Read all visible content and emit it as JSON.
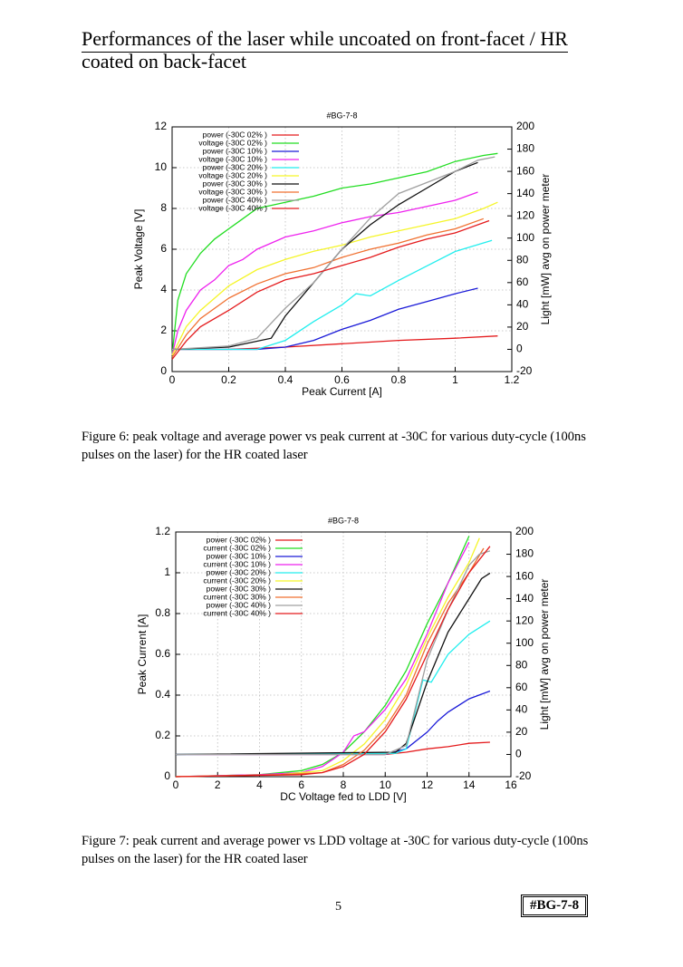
{
  "header": {
    "title": "Performances of the laser while uncoated on front-facet / HR coated on back-facet"
  },
  "chart_data": [
    {
      "type": "line",
      "title": "#BG-7-8",
      "xlabel": "Peak Current [A]",
      "ylabel": "Peak Voltage [V]",
      "y2label": "Light [mW] avg on power meter",
      "xlim": [
        0,
        1.2
      ],
      "xticks": [
        0,
        0.2,
        0.4,
        0.6,
        0.8,
        1,
        1.2
      ],
      "ylim": [
        0,
        12
      ],
      "yticks": [
        0,
        2,
        4,
        6,
        8,
        10,
        12
      ],
      "y2lim": [
        -20,
        200
      ],
      "y2ticks": [
        -20,
        0,
        20,
        40,
        60,
        80,
        100,
        120,
        140,
        160,
        180,
        200
      ],
      "grid": true,
      "legend": "upper left",
      "series": [
        {
          "name": "power (-30C 02% )",
          "color": "#e41a1c",
          "axis": "y2",
          "x": [
            0,
            0.2,
            0.4,
            0.6,
            0.8,
            1.0,
            1.15
          ],
          "values": [
            0,
            0,
            2,
            5,
            8,
            10,
            12
          ]
        },
        {
          "name": "voltage (-30C 02% )",
          "color": "#22dd22",
          "x": [
            0,
            0.02,
            0.05,
            0.1,
            0.15,
            0.2,
            0.25,
            0.3,
            0.4,
            0.5,
            0.6,
            0.7,
            0.8,
            0.9,
            1.0,
            1.1,
            1.15
          ],
          "values": [
            0.8,
            3.5,
            4.8,
            5.8,
            6.5,
            7.0,
            7.5,
            8.0,
            8.3,
            8.6,
            9.0,
            9.2,
            9.5,
            9.8,
            10.3,
            10.6,
            10.7
          ]
        },
        {
          "name": "power (-30C 10% )",
          "color": "#1a1ad8",
          "axis": "y2",
          "x": [
            0,
            0.3,
            0.4,
            0.5,
            0.6,
            0.7,
            0.8,
            0.9,
            1.0,
            1.08
          ],
          "values": [
            0,
            0,
            2,
            8,
            18,
            26,
            36,
            43,
            50,
            55
          ]
        },
        {
          "name": "voltage (-30C 10% )",
          "color": "#ee22ee",
          "x": [
            0,
            0.02,
            0.05,
            0.1,
            0.15,
            0.2,
            0.25,
            0.3,
            0.4,
            0.5,
            0.6,
            0.7,
            0.8,
            0.9,
            1.0,
            1.08
          ],
          "values": [
            0.8,
            2.0,
            3.0,
            4.0,
            4.5,
            5.2,
            5.5,
            6.0,
            6.6,
            6.9,
            7.3,
            7.6,
            7.8,
            8.1,
            8.4,
            8.8
          ]
        },
        {
          "name": "power (-30C 20% )",
          "color": "#22eeee",
          "axis": "y2",
          "x": [
            0,
            0.3,
            0.4,
            0.5,
            0.6,
            0.65,
            0.7,
            0.8,
            0.9,
            1.0,
            1.13
          ],
          "values": [
            0,
            0,
            8,
            25,
            40,
            50,
            48,
            62,
            75,
            88,
            98
          ]
        },
        {
          "name": "voltage (-30C 20% )",
          "color": "#f5f528",
          "x": [
            0,
            0.05,
            0.1,
            0.2,
            0.3,
            0.4,
            0.5,
            0.6,
            0.7,
            0.8,
            0.9,
            1.0,
            1.1,
            1.15
          ],
          "values": [
            0.8,
            2.2,
            3.0,
            4.2,
            5.0,
            5.5,
            5.9,
            6.2,
            6.6,
            6.9,
            7.2,
            7.5,
            8.0,
            8.3
          ]
        },
        {
          "name": "power (-30C 30% )",
          "color": "#111111",
          "axis": "y2",
          "x": [
            0,
            0.2,
            0.35,
            0.4,
            0.5,
            0.6,
            0.7,
            0.8,
            0.9,
            1.0,
            1.08
          ],
          "values": [
            0,
            2,
            10,
            30,
            60,
            90,
            112,
            130,
            145,
            160,
            168
          ]
        },
        {
          "name": "voltage (-30C 30% )",
          "color": "#f07030",
          "x": [
            0,
            0.05,
            0.1,
            0.2,
            0.3,
            0.4,
            0.5,
            0.6,
            0.7,
            0.8,
            0.9,
            1.0,
            1.1
          ],
          "values": [
            0.7,
            1.8,
            2.6,
            3.6,
            4.3,
            4.8,
            5.1,
            5.6,
            6.0,
            6.3,
            6.7,
            7.0,
            7.5
          ]
        },
        {
          "name": "power (-30C 40% )",
          "color": "#a0a0a0",
          "axis": "y2",
          "x": [
            0,
            0.2,
            0.3,
            0.4,
            0.5,
            0.6,
            0.7,
            0.8,
            0.9,
            1.0,
            1.08,
            1.14
          ],
          "values": [
            0,
            3,
            10,
            37,
            60,
            90,
            118,
            140,
            150,
            160,
            170,
            173
          ]
        },
        {
          "name": "voltage (-30C 40% )",
          "color": "#e41a1c",
          "x": [
            0,
            0.05,
            0.1,
            0.2,
            0.3,
            0.4,
            0.5,
            0.6,
            0.7,
            0.8,
            0.9,
            1.0,
            1.12
          ],
          "values": [
            0.6,
            1.5,
            2.2,
            3.0,
            3.9,
            4.5,
            4.8,
            5.2,
            5.6,
            6.1,
            6.5,
            6.8,
            7.4
          ]
        }
      ]
    },
    {
      "type": "line",
      "title": "#BG-7-8",
      "xlabel": "DC Voltage fed to LDD [V]",
      "ylabel": "Peak Current [A]",
      "y2label": "Light [mW] avg on power meter",
      "xlim": [
        0,
        16
      ],
      "xticks": [
        0,
        2,
        4,
        6,
        8,
        10,
        12,
        14,
        16
      ],
      "ylim": [
        0,
        1.2
      ],
      "yticks": [
        0,
        0.2,
        0.4,
        0.6,
        0.8,
        1,
        1.2
      ],
      "y2lim": [
        -20,
        200
      ],
      "y2ticks": [
        -20,
        0,
        20,
        40,
        60,
        80,
        100,
        120,
        140,
        160,
        180,
        200
      ],
      "grid": true,
      "legend": "upper left",
      "series": [
        {
          "name": "power (-30C 02% )",
          "color": "#e41a1c",
          "axis": "y2",
          "x": [
            0,
            10,
            11,
            12,
            13,
            14,
            15
          ],
          "values": [
            0,
            0,
            2,
            5,
            7,
            10,
            11
          ]
        },
        {
          "name": "current (-30C 02% )",
          "color": "#22dd22",
          "x": [
            0,
            4,
            6,
            7,
            8,
            9,
            10,
            11,
            12,
            13,
            14
          ],
          "values": [
            0,
            0.01,
            0.03,
            0.06,
            0.12,
            0.22,
            0.35,
            0.52,
            0.75,
            0.95,
            1.18
          ]
        },
        {
          "name": "power (-30C 10% )",
          "color": "#1a1ad8",
          "axis": "y2",
          "x": [
            0,
            10,
            11,
            12,
            12.5,
            13,
            14,
            15
          ],
          "values": [
            0,
            0,
            5,
            20,
            30,
            38,
            50,
            57
          ]
        },
        {
          "name": "current (-30C 10% )",
          "color": "#ee22ee",
          "x": [
            0,
            4,
            6,
            7,
            8,
            8.5,
            9,
            10,
            11,
            12,
            13,
            14
          ],
          "values": [
            0,
            0.01,
            0.02,
            0.05,
            0.12,
            0.2,
            0.22,
            0.33,
            0.48,
            0.7,
            0.95,
            1.15
          ]
        },
        {
          "name": "power (-30C 20% )",
          "color": "#22eeee",
          "axis": "y2",
          "x": [
            0,
            10.5,
            11,
            11.8,
            12.2,
            13,
            14,
            15
          ],
          "values": [
            0,
            1,
            5,
            67,
            65,
            90,
            108,
            120
          ]
        },
        {
          "name": "current (-30C 20% )",
          "color": "#f5f528",
          "x": [
            0,
            5,
            7,
            8,
            9,
            10,
            11,
            12,
            13,
            14,
            14.5
          ],
          "values": [
            0,
            0.01,
            0.03,
            0.08,
            0.16,
            0.28,
            0.45,
            0.68,
            0.88,
            1.05,
            1.17
          ]
        },
        {
          "name": "power (-30C 30% )",
          "color": "#111111",
          "axis": "y2",
          "x": [
            0,
            10.5,
            11,
            12,
            13,
            14,
            14.6,
            15
          ],
          "values": [
            0,
            2,
            10,
            65,
            110,
            140,
            158,
            163
          ]
        },
        {
          "name": "current (-30C 30% )",
          "color": "#f07030",
          "x": [
            0,
            5,
            7,
            8,
            9,
            10,
            11,
            12,
            13,
            14,
            14.7
          ],
          "values": [
            0,
            0.01,
            0.02,
            0.06,
            0.13,
            0.24,
            0.4,
            0.65,
            0.85,
            1.0,
            1.12
          ]
        },
        {
          "name": "power (-30C 40% )",
          "color": "#a0a0a0",
          "axis": "y2",
          "x": [
            0,
            10,
            11,
            12,
            13,
            14,
            14.5,
            15
          ],
          "values": [
            0,
            0,
            8,
            85,
            130,
            170,
            180,
            183
          ]
        },
        {
          "name": "current (-30C 40% )",
          "color": "#e41a1c",
          "x": [
            0,
            6,
            7,
            8,
            9,
            10,
            11,
            12,
            13,
            14,
            15
          ],
          "values": [
            0,
            0.01,
            0.02,
            0.05,
            0.11,
            0.22,
            0.38,
            0.6,
            0.82,
            1.0,
            1.13
          ]
        }
      ]
    }
  ],
  "captions": [
    "Figure 6: peak voltage and average power vs peak current at -30C for various duty-cycle (100ns pulses on the laser) for the HR coated laser",
    "Figure 7: peak current and average power vs LDD voltage at -30C for various duty-cycle (100ns pulses on the laser) for the HR coated laser"
  ],
  "footer": {
    "page": "5",
    "tag": "#BG-7-8"
  }
}
